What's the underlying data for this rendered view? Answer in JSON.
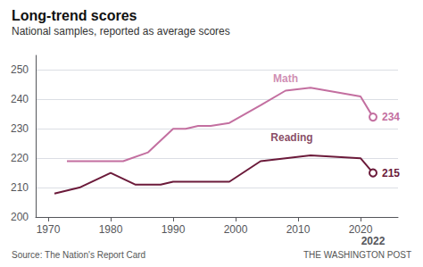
{
  "chart_data": {
    "type": "line",
    "title": "Long-trend scores",
    "subtitle": "National samples, reported as average scores",
    "source": "Source: The Nation's Report Card",
    "credit": "THE WASHINGTON POST",
    "xlim": [
      1968,
      2026
    ],
    "xticks": [
      1970,
      1980,
      1990,
      2000,
      2010,
      2020,
      2022
    ],
    "ylim": [
      200,
      255
    ],
    "yticks": [
      200,
      210,
      220,
      230,
      240,
      250
    ],
    "grid": true,
    "series": [
      {
        "name": "Math",
        "color": "#c36fa0",
        "x": [
          1973,
          1978,
          1982,
          1986,
          1990,
          1992,
          1994,
          1996,
          1999,
          2004,
          2008,
          2012,
          2020,
          2022
        ],
        "values": [
          219,
          219,
          219,
          222,
          230,
          230,
          231,
          231,
          232,
          238,
          243,
          244,
          241,
          234
        ],
        "value_labels": [
          null,
          null,
          null,
          null,
          null,
          null,
          null,
          null,
          null,
          null,
          null,
          null,
          null,
          "234"
        ]
      },
      {
        "name": "Reading",
        "color": "#6b1a3a",
        "x": [
          1971,
          1975,
          1980,
          1984,
          1988,
          1990,
          1992,
          1994,
          1996,
          1999,
          2004,
          2008,
          2012,
          2020,
          2022
        ],
        "values": [
          208,
          210,
          215,
          211,
          211,
          212,
          212,
          212,
          212,
          212,
          219,
          220,
          221,
          220,
          215
        ],
        "value_labels": [
          null,
          null,
          null,
          null,
          null,
          null,
          null,
          null,
          null,
          null,
          null,
          null,
          null,
          null,
          "215"
        ]
      }
    ],
    "annotations": [
      {
        "text": "Math",
        "x": 2008,
        "y": 247
      },
      {
        "text": "Reading",
        "x": 2009,
        "y": 227
      }
    ]
  }
}
